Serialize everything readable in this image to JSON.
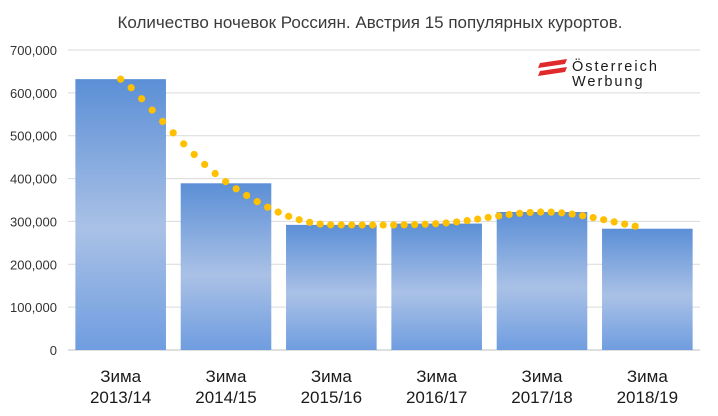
{
  "chart_data": {
    "type": "bar",
    "title": "Количество ночевок Россиян. Австрия 15 популярных курортов.",
    "categories": [
      [
        "Зима",
        "2013/14"
      ],
      [
        "Зима",
        "2014/15"
      ],
      [
        "Зима",
        "2015/16"
      ],
      [
        "Зима",
        "2016/17"
      ],
      [
        "Зима",
        "2017/18"
      ],
      [
        "Зима",
        "2018/19"
      ]
    ],
    "values": [
      632000,
      389000,
      292000,
      295000,
      322000,
      283000
    ],
    "trendline": {
      "style": "dotted",
      "color": "#ffc000",
      "type": "polynomial"
    },
    "y_ticks": [
      "0",
      "100,000",
      "200,000",
      "300,000",
      "400,000",
      "500,000",
      "600,000",
      "700,000"
    ],
    "ylim": [
      0,
      700000
    ],
    "grid": true,
    "bar_gradient": [
      "#5b8fd6",
      "#aac1e6",
      "#6f9de0"
    ]
  },
  "logo": {
    "line1": "Österreich",
    "line2": "Werbung",
    "stripe_color": "#e0292a"
  }
}
